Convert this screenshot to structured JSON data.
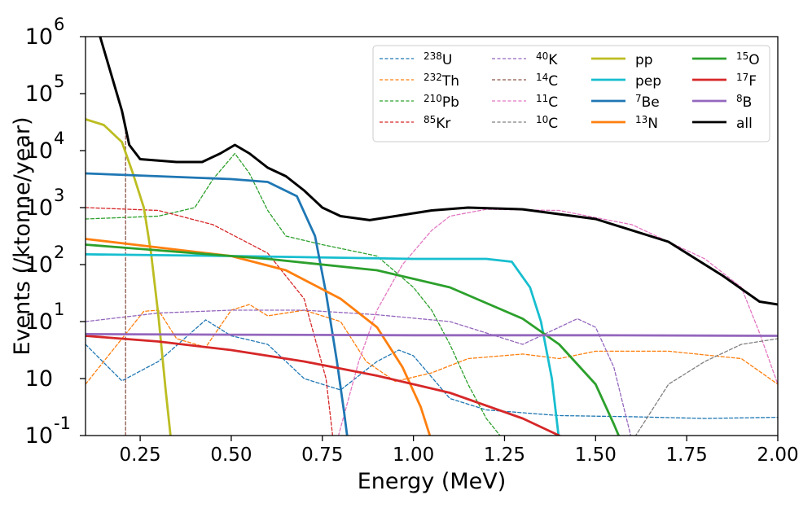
{
  "chart_data": {
    "type": "line",
    "title": "",
    "xlabel": "Energy (MeV)",
    "ylabel": "Events (/ktonne/year)",
    "xlim": [
      0.1,
      2.0
    ],
    "ylim_log10": [
      -1,
      6
    ],
    "yscale": "log",
    "grid": false,
    "legend_position": "top-right",
    "x_ticks": [
      {
        "value": 0.25,
        "label": "0.25"
      },
      {
        "value": 0.5,
        "label": "0.50"
      },
      {
        "value": 0.75,
        "label": "0.75"
      },
      {
        "value": 1.0,
        "label": "1.00"
      },
      {
        "value": 1.25,
        "label": "1.25"
      },
      {
        "value": 1.5,
        "label": "1.50"
      },
      {
        "value": 1.75,
        "label": "1.75"
      },
      {
        "value": 2.0,
        "label": "2.00"
      }
    ],
    "y_ticks": [
      {
        "log10": 6,
        "base": "10",
        "exp": "6"
      },
      {
        "log10": 5,
        "base": "10",
        "exp": "5"
      },
      {
        "log10": 4,
        "base": "10",
        "exp": "4"
      },
      {
        "log10": 3,
        "base": "10",
        "exp": "3"
      },
      {
        "log10": 2,
        "base": "10",
        "exp": "2"
      },
      {
        "log10": 1,
        "base": "10",
        "exp": "1"
      },
      {
        "log10": 0,
        "base": "10",
        "exp": ""
      },
      {
        "log10": -1,
        "base": "10",
        "exp": "-1"
      }
    ],
    "series": [
      {
        "sup": "238",
        "base": "U",
        "color": "#1f77b4",
        "dashed": true,
        "points": [
          [
            0.1,
            0.6
          ],
          [
            0.2,
            -0.04
          ],
          [
            0.3,
            0.3
          ],
          [
            0.43,
            1.03
          ],
          [
            0.5,
            0.75
          ],
          [
            0.6,
            0.6
          ],
          [
            0.7,
            0
          ],
          [
            0.8,
            -0.2
          ],
          [
            0.9,
            0.3
          ],
          [
            0.96,
            0.5
          ],
          [
            1.0,
            0.4
          ],
          [
            1.1,
            -0.35
          ],
          [
            1.2,
            -0.55
          ],
          [
            1.4,
            -0.65
          ],
          [
            1.6,
            -0.67
          ],
          [
            1.8,
            -0.7
          ],
          [
            2.0,
            -0.68
          ]
        ]
      },
      {
        "sup": "232",
        "base": "Th",
        "color": "#ff7f0e",
        "dashed": true,
        "points": [
          [
            0.1,
            -0.1
          ],
          [
            0.2,
            0.7
          ],
          [
            0.26,
            1.18
          ],
          [
            0.3,
            1.2
          ],
          [
            0.35,
            0.7
          ],
          [
            0.43,
            0.55
          ],
          [
            0.5,
            1.2
          ],
          [
            0.55,
            1.3
          ],
          [
            0.6,
            1.1
          ],
          [
            0.7,
            1.2
          ],
          [
            0.8,
            1.0
          ],
          [
            0.87,
            0.3
          ],
          [
            0.95,
            -0.05
          ],
          [
            1.05,
            0.1
          ],
          [
            1.15,
            0.35
          ],
          [
            1.3,
            0.43
          ],
          [
            1.4,
            0.35
          ],
          [
            1.5,
            0.48
          ],
          [
            1.7,
            0.48
          ],
          [
            1.9,
            0.35
          ],
          [
            2.0,
            -0.1
          ]
        ]
      },
      {
        "sup": "210",
        "base": "Pb",
        "color": "#2ca02c",
        "dashed": true,
        "points": [
          [
            0.1,
            2.8
          ],
          [
            0.3,
            2.85
          ],
          [
            0.4,
            3.0
          ],
          [
            0.45,
            3.5
          ],
          [
            0.51,
            3.95
          ],
          [
            0.55,
            3.6
          ],
          [
            0.6,
            2.95
          ],
          [
            0.65,
            2.5
          ],
          [
            0.75,
            2.35
          ],
          [
            0.9,
            2.15
          ],
          [
            1.0,
            1.6
          ],
          [
            1.05,
            1.2
          ],
          [
            1.1,
            0.6
          ],
          [
            1.15,
            -0.1
          ],
          [
            1.2,
            -0.7
          ],
          [
            1.25,
            -1.1
          ]
        ]
      },
      {
        "sup": "85",
        "base": "Kr",
        "color": "#d62728",
        "dashed": true,
        "points": [
          [
            0.1,
            3.0
          ],
          [
            0.3,
            2.95
          ],
          [
            0.45,
            2.7
          ],
          [
            0.6,
            2.2
          ],
          [
            0.7,
            1.4
          ],
          [
            0.76,
            0.0
          ],
          [
            0.78,
            -1.1
          ]
        ]
      },
      {
        "sup": "40",
        "base": "K",
        "color": "#9467bd",
        "dashed": true,
        "points": [
          [
            0.1,
            1.0
          ],
          [
            0.3,
            1.15
          ],
          [
            0.5,
            1.2
          ],
          [
            0.7,
            1.2
          ],
          [
            0.9,
            1.12
          ],
          [
            1.1,
            1.0
          ],
          [
            1.2,
            0.8
          ],
          [
            1.3,
            0.6
          ],
          [
            1.4,
            0.9
          ],
          [
            1.45,
            1.05
          ],
          [
            1.5,
            0.9
          ],
          [
            1.55,
            0.2
          ],
          [
            1.6,
            -1.1
          ]
        ]
      },
      {
        "sup": "14",
        "base": "C",
        "color": "#8c564b",
        "dashed": true,
        "points": [
          [
            0.21,
            4.35
          ],
          [
            0.21,
            -1.1
          ]
        ]
      },
      {
        "sup": "11",
        "base": "C",
        "color": "#e377c2",
        "dashed": true,
        "points": [
          [
            0.79,
            -1.1
          ],
          [
            0.85,
            0.3
          ],
          [
            0.9,
            1.2
          ],
          [
            0.97,
            2.0
          ],
          [
            1.05,
            2.6
          ],
          [
            1.1,
            2.85
          ],
          [
            1.2,
            2.97
          ],
          [
            1.4,
            2.95
          ],
          [
            1.6,
            2.7
          ],
          [
            1.8,
            2.1
          ],
          [
            1.9,
            1.6
          ],
          [
            1.95,
            0.8
          ],
          [
            2.0,
            -0.1
          ]
        ]
      },
      {
        "sup": "10",
        "base": "C",
        "color": "#7f7f7f",
        "dashed": true,
        "points": [
          [
            1.6,
            -1.1
          ],
          [
            1.7,
            -0.1
          ],
          [
            1.8,
            0.3
          ],
          [
            1.9,
            0.6
          ],
          [
            2.0,
            0.7
          ]
        ]
      },
      {
        "sup": "",
        "base": "pp",
        "color": "#bcbd22",
        "dashed": false,
        "points": [
          [
            0.1,
            4.55
          ],
          [
            0.15,
            4.45
          ],
          [
            0.2,
            4.15
          ],
          [
            0.23,
            3.6
          ],
          [
            0.26,
            3.0
          ],
          [
            0.28,
            2.2
          ],
          [
            0.3,
            1.1
          ],
          [
            0.32,
            -0.2
          ],
          [
            0.335,
            -1.1
          ]
        ]
      },
      {
        "sup": "",
        "base": "pep",
        "color": "#17becf",
        "dashed": false,
        "points": [
          [
            0.1,
            2.18
          ],
          [
            0.5,
            2.15
          ],
          [
            1.0,
            2.1
          ],
          [
            1.2,
            2.1
          ],
          [
            1.27,
            2.05
          ],
          [
            1.32,
            1.6
          ],
          [
            1.35,
            1.0
          ],
          [
            1.38,
            0.0
          ],
          [
            1.4,
            -1.1
          ]
        ]
      },
      {
        "sup": "7",
        "base": "Be",
        "color": "#1f77b4",
        "dashed": false,
        "points": [
          [
            0.1,
            3.6
          ],
          [
            0.3,
            3.55
          ],
          [
            0.5,
            3.5
          ],
          [
            0.6,
            3.45
          ],
          [
            0.68,
            3.2
          ],
          [
            0.73,
            2.5
          ],
          [
            0.76,
            1.5
          ],
          [
            0.79,
            0.3
          ],
          [
            0.81,
            -0.6
          ],
          [
            0.82,
            -1.1
          ]
        ]
      },
      {
        "sup": "13",
        "base": "N",
        "color": "#ff7f0e",
        "dashed": false,
        "points": [
          [
            0.1,
            2.45
          ],
          [
            0.3,
            2.3
          ],
          [
            0.5,
            2.15
          ],
          [
            0.65,
            1.9
          ],
          [
            0.8,
            1.4
          ],
          [
            0.9,
            0.9
          ],
          [
            0.97,
            0.2
          ],
          [
            1.02,
            -0.5
          ],
          [
            1.05,
            -1.1
          ]
        ]
      },
      {
        "sup": "15",
        "base": "O",
        "color": "#2ca02c",
        "dashed": false,
        "points": [
          [
            0.1,
            2.35
          ],
          [
            0.3,
            2.25
          ],
          [
            0.6,
            2.1
          ],
          [
            0.9,
            1.9
          ],
          [
            1.1,
            1.6
          ],
          [
            1.3,
            1.05
          ],
          [
            1.4,
            0.6
          ],
          [
            1.5,
            -0.1
          ],
          [
            1.55,
            -0.8
          ],
          [
            1.57,
            -1.1
          ]
        ]
      },
      {
        "sup": "17",
        "base": "F",
        "color": "#d62728",
        "dashed": false,
        "points": [
          [
            0.1,
            0.75
          ],
          [
            0.3,
            0.65
          ],
          [
            0.5,
            0.5
          ],
          [
            0.7,
            0.3
          ],
          [
            0.9,
            0.05
          ],
          [
            1.1,
            -0.25
          ],
          [
            1.3,
            -0.7
          ],
          [
            1.4,
            -1.0
          ],
          [
            1.43,
            -1.1
          ]
        ]
      },
      {
        "sup": "8",
        "base": "B",
        "color": "#9467bd",
        "dashed": false,
        "points": [
          [
            0.1,
            0.78
          ],
          [
            0.5,
            0.77
          ],
          [
            1.0,
            0.76
          ],
          [
            1.5,
            0.76
          ],
          [
            2.0,
            0.75
          ]
        ]
      },
      {
        "sup": "",
        "base": "all",
        "color": "#000000",
        "dashed": false,
        "points": [
          [
            0.14,
            6.0
          ],
          [
            0.2,
            4.7
          ],
          [
            0.22,
            4.1
          ],
          [
            0.25,
            3.85
          ],
          [
            0.35,
            3.8
          ],
          [
            0.42,
            3.8
          ],
          [
            0.47,
            3.95
          ],
          [
            0.51,
            4.1
          ],
          [
            0.55,
            3.95
          ],
          [
            0.6,
            3.7
          ],
          [
            0.65,
            3.55
          ],
          [
            0.7,
            3.3
          ],
          [
            0.75,
            3.0
          ],
          [
            0.8,
            2.85
          ],
          [
            0.88,
            2.78
          ],
          [
            0.95,
            2.85
          ],
          [
            1.05,
            2.95
          ],
          [
            1.15,
            3.0
          ],
          [
            1.3,
            2.97
          ],
          [
            1.5,
            2.8
          ],
          [
            1.7,
            2.4
          ],
          [
            1.85,
            1.8
          ],
          [
            1.95,
            1.35
          ],
          [
            2.0,
            1.3
          ]
        ]
      }
    ]
  }
}
